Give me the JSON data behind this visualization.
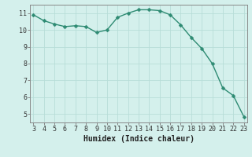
{
  "x": [
    3,
    4,
    5,
    6,
    7,
    8,
    9,
    10,
    11,
    12,
    13,
    14,
    15,
    16,
    17,
    18,
    19,
    20,
    21,
    22,
    23
  ],
  "y": [
    10.9,
    10.55,
    10.35,
    10.2,
    10.25,
    10.2,
    9.85,
    10.0,
    10.75,
    11.0,
    11.2,
    11.2,
    11.15,
    10.9,
    10.3,
    9.55,
    8.9,
    8.0,
    6.55,
    6.1,
    4.85
  ],
  "xlabel": "Humidex (Indice chaleur)",
  "xlim": [
    3,
    23
  ],
  "ylim": [
    4.5,
    11.5
  ],
  "yticks": [
    5,
    6,
    7,
    8,
    9,
    10,
    11
  ],
  "xticks": [
    3,
    4,
    5,
    6,
    7,
    8,
    9,
    10,
    11,
    12,
    13,
    14,
    15,
    16,
    17,
    18,
    19,
    20,
    21,
    22,
    23
  ],
  "line_color": "#2e8b73",
  "marker_color": "#2e8b73",
  "bg_color": "#d4f0ec",
  "grid_color": "#b8ddd8",
  "axis_color": "#888888",
  "tick_label_color": "#333333",
  "xlabel_color": "#222222",
  "xlabel_fontsize": 7,
  "tick_fontsize": 6,
  "line_width": 1.0,
  "marker_size": 2.5
}
